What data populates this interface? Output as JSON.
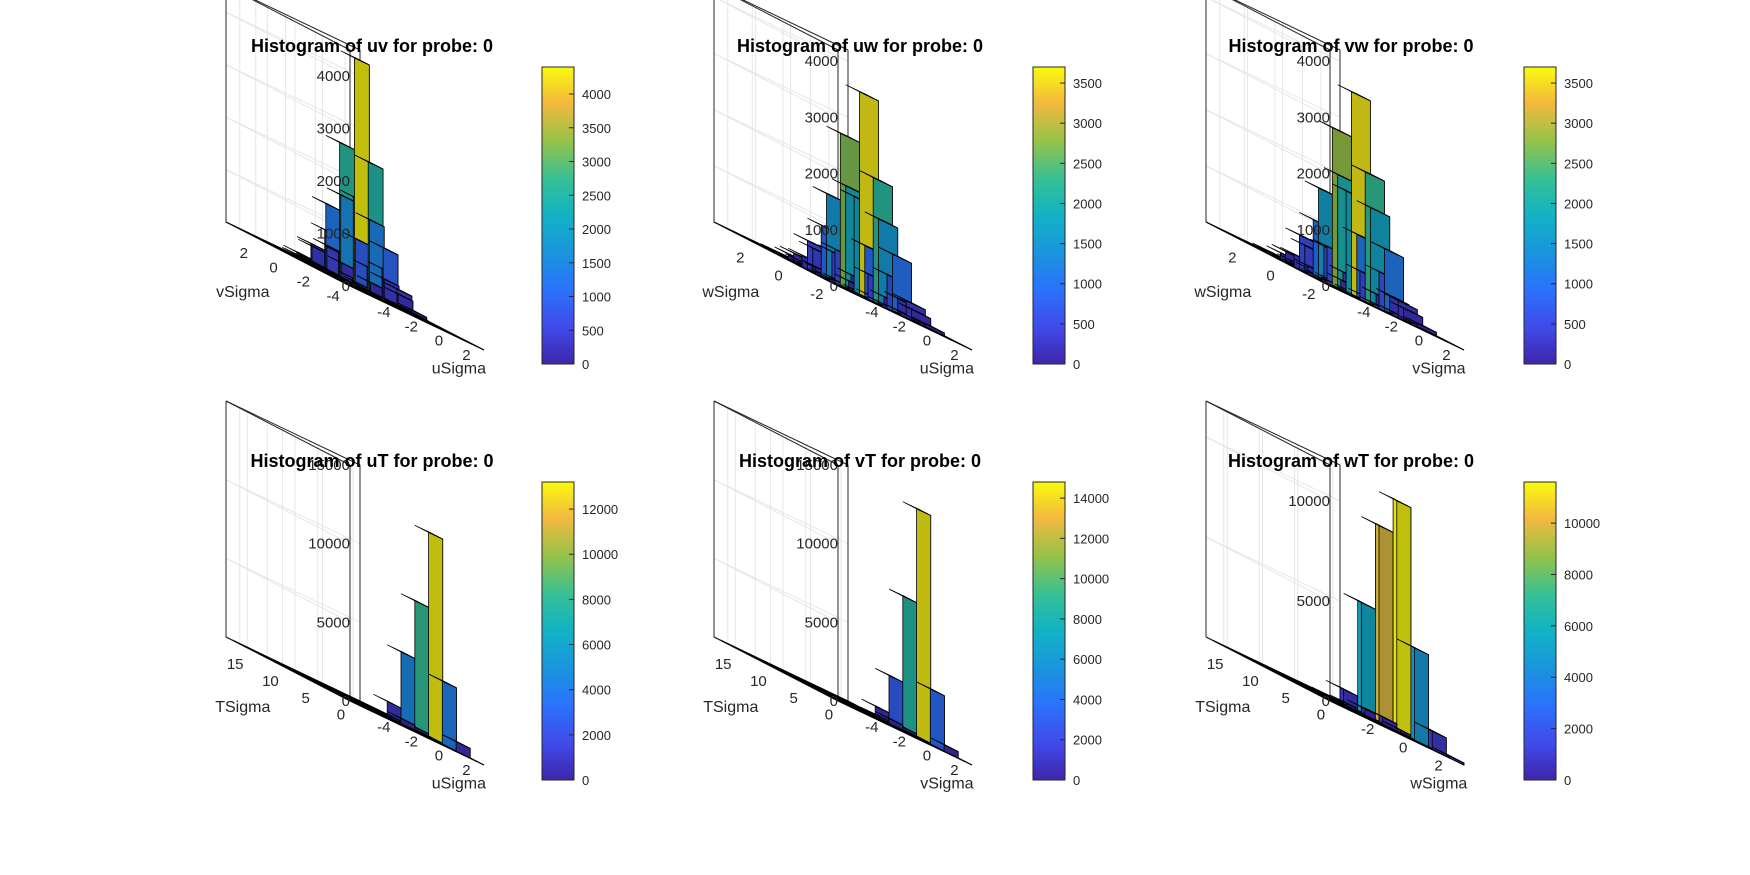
{
  "chart_data": [
    {
      "type": "bar3d",
      "title": "Histogram of uv for probe: 0",
      "xlabel": "uSigma",
      "ylabel": "vSigma",
      "x_ticks": [
        "-4",
        "-2",
        "0",
        "2"
      ],
      "y_ticks": [
        "2",
        "0",
        "-2",
        "-4"
      ],
      "z_ticks": [
        "0",
        "1000",
        "2000",
        "3000",
        "4000"
      ],
      "xlim": [
        -5,
        4
      ],
      "ylim": [
        -5,
        4
      ],
      "zlim": [
        0,
        4500
      ],
      "colorbar": {
        "ticks": [
          "0",
          "500",
          "1000",
          "1500",
          "2000",
          "2500",
          "3000",
          "3500",
          "4000"
        ],
        "range": [
          0,
          4400
        ]
      },
      "x_bins": [
        -4.5,
        -3.5,
        -2.5,
        -1.5,
        -0.5,
        0.5,
        1.5,
        2.5,
        3.5
      ],
      "y_bins": [
        -4.5,
        -3.5,
        -2.5,
        -1.5,
        -0.5,
        0.5,
        1.5,
        2.5,
        3.5
      ],
      "grid": true,
      "values": [
        [
          0,
          0,
          0,
          0,
          0,
          0,
          0,
          0,
          0
        ],
        [
          0,
          0,
          0,
          20,
          30,
          20,
          0,
          0,
          0
        ],
        [
          0,
          0,
          60,
          200,
          400,
          250,
          80,
          0,
          0
        ],
        [
          0,
          30,
          300,
          900,
          1400,
          1000,
          350,
          40,
          0
        ],
        [
          0,
          50,
          500,
          1600,
          4350,
          2500,
          600,
          60,
          0
        ],
        [
          0,
          40,
          350,
          1300,
          2600,
          1700,
          500,
          40,
          0
        ],
        [
          0,
          0,
          100,
          400,
          800,
          500,
          150,
          0,
          0
        ],
        [
          0,
          0,
          0,
          60,
          100,
          70,
          0,
          0,
          0
        ],
        [
          0,
          0,
          0,
          0,
          0,
          0,
          0,
          0,
          0
        ]
      ]
    },
    {
      "type": "bar3d",
      "title": "Histogram of uw for probe: 0",
      "xlabel": "uSigma",
      "ylabel": "wSigma",
      "x_ticks": [
        "-4",
        "-2",
        "0",
        "2"
      ],
      "y_ticks": [
        "2",
        "0",
        "-2"
      ],
      "z_ticks": [
        "0",
        "1000",
        "2000",
        "3000",
        "4000"
      ],
      "xlim": [
        -5,
        4
      ],
      "ylim": [
        -3,
        4
      ],
      "zlim": [
        0,
        4200
      ],
      "colorbar": {
        "ticks": [
          "0",
          "500",
          "1000",
          "1500",
          "2000",
          "2500",
          "3000",
          "3500"
        ],
        "range": [
          0,
          3700
        ]
      },
      "x_bins": [
        -4.5,
        -3.5,
        -2.5,
        -1.5,
        -0.5,
        0.5,
        1.5,
        2.5,
        3.5
      ],
      "y_bins": [
        -2.5,
        -1.5,
        -0.5,
        0.5,
        1.5,
        2.5,
        3.5
      ],
      "grid": true,
      "values": [
        [
          0,
          0,
          40,
          150,
          250,
          180,
          50,
          0,
          0
        ],
        [
          0,
          30,
          250,
          900,
          1500,
          1000,
          300,
          40,
          0
        ],
        [
          0,
          60,
          500,
          1800,
          3600,
          2200,
          600,
          60,
          0
        ],
        [
          0,
          50,
          400,
          1500,
          2700,
          1700,
          450,
          50,
          0
        ],
        [
          0,
          20,
          150,
          500,
          900,
          600,
          160,
          20,
          0
        ],
        [
          0,
          0,
          30,
          100,
          200,
          120,
          40,
          0,
          0
        ],
        [
          0,
          0,
          0,
          20,
          40,
          20,
          0,
          0,
          0
        ]
      ]
    },
    {
      "type": "bar3d",
      "title": "Histogram of vw for probe: 0",
      "xlabel": "vSigma",
      "ylabel": "wSigma",
      "x_ticks": [
        "-4",
        "-2",
        "0",
        "2"
      ],
      "y_ticks": [
        "2",
        "0",
        "-2"
      ],
      "z_ticks": [
        "0",
        "1000",
        "2000",
        "3000",
        "4000"
      ],
      "xlim": [
        -5,
        4
      ],
      "ylim": [
        -3,
        4
      ],
      "zlim": [
        0,
        4200
      ],
      "colorbar": {
        "ticks": [
          "0",
          "500",
          "1000",
          "1500",
          "2000",
          "2500",
          "3000",
          "3500"
        ],
        "range": [
          0,
          3700
        ]
      },
      "x_bins": [
        -4.5,
        -3.5,
        -2.5,
        -1.5,
        -0.5,
        0.5,
        1.5,
        2.5,
        3.5
      ],
      "y_bins": [
        -2.5,
        -1.5,
        -0.5,
        0.5,
        1.5,
        2.5,
        3.5
      ],
      "grid": true,
      "values": [
        [
          0,
          0,
          50,
          200,
          300,
          200,
          60,
          0,
          0
        ],
        [
          0,
          40,
          300,
          1100,
          1700,
          1100,
          300,
          40,
          0
        ],
        [
          0,
          60,
          600,
          2000,
          3600,
          2300,
          650,
          60,
          0
        ],
        [
          0,
          50,
          450,
          1600,
          2800,
          1800,
          500,
          50,
          0
        ],
        [
          0,
          20,
          180,
          600,
          1000,
          650,
          180,
          20,
          0
        ],
        [
          0,
          0,
          40,
          120,
          220,
          140,
          40,
          0,
          0
        ],
        [
          0,
          0,
          0,
          20,
          40,
          20,
          0,
          0,
          0
        ]
      ]
    },
    {
      "type": "bar3d",
      "title": "Histogram of uT for probe: 0",
      "xlabel": "uSigma",
      "ylabel": "TSigma",
      "x_ticks": [
        "-4",
        "-2",
        "0",
        "2"
      ],
      "y_ticks": [
        "15",
        "10",
        "5",
        "0"
      ],
      "z_ticks": [
        "0",
        "5000",
        "10000",
        "15000"
      ],
      "xlim": [
        -5,
        4
      ],
      "ylim": [
        -1,
        18
      ],
      "zlim": [
        0,
        15000
      ],
      "colorbar": {
        "ticks": [
          "0",
          "2000",
          "4000",
          "6000",
          "8000",
          "10000",
          "12000"
        ],
        "range": [
          0,
          13200
        ]
      },
      "x_bins": [
        -4.5,
        -3.5,
        -2.5,
        -1.5,
        -0.5,
        0.5,
        1.5,
        2.5,
        3.5
      ],
      "y_bins": [
        0,
        2,
        4,
        6,
        8,
        10,
        12,
        14,
        16
      ],
      "grid": true,
      "values": [
        [
          0,
          40,
          900,
          4500,
          8200,
          13000,
          4000,
          600,
          0
        ],
        [
          0,
          0,
          20,
          100,
          300,
          200,
          60,
          0,
          0
        ],
        [
          0,
          0,
          0,
          0,
          0,
          0,
          0,
          0,
          0
        ],
        [
          0,
          0,
          0,
          0,
          0,
          0,
          0,
          0,
          0
        ],
        [
          0,
          0,
          0,
          0,
          0,
          0,
          0,
          0,
          0
        ],
        [
          0,
          0,
          0,
          0,
          0,
          0,
          0,
          0,
          0
        ],
        [
          0,
          0,
          0,
          0,
          0,
          0,
          0,
          0,
          0
        ],
        [
          0,
          0,
          0,
          0,
          0,
          0,
          0,
          0,
          0
        ],
        [
          0,
          0,
          0,
          0,
          0,
          0,
          0,
          0,
          0
        ]
      ]
    },
    {
      "type": "bar3d",
      "title": "Histogram of vT for probe: 0",
      "xlabel": "vSigma",
      "ylabel": "TSigma",
      "x_ticks": [
        "-4",
        "-2",
        "0",
        "2"
      ],
      "y_ticks": [
        "15",
        "10",
        "5",
        "0"
      ],
      "z_ticks": [
        "0",
        "5000",
        "10000",
        "15000"
      ],
      "xlim": [
        -5,
        4
      ],
      "ylim": [
        -1,
        18
      ],
      "zlim": [
        0,
        15000
      ],
      "colorbar": {
        "ticks": [
          "0",
          "2000",
          "4000",
          "6000",
          "8000",
          "10000",
          "12000",
          "14000"
        ],
        "range": [
          0,
          14800
        ]
      },
      "x_bins": [
        -4.5,
        -3.5,
        -2.5,
        -1.5,
        -0.5,
        0.5,
        1.5,
        2.5,
        3.5
      ],
      "y_bins": [
        0,
        2,
        4,
        6,
        8,
        10,
        12,
        14,
        16
      ],
      "grid": true,
      "values": [
        [
          0,
          0,
          600,
          3000,
          8500,
          14500,
          3500,
          400,
          0
        ],
        [
          0,
          0,
          20,
          100,
          300,
          200,
          60,
          0,
          0
        ],
        [
          0,
          0,
          0,
          0,
          0,
          0,
          0,
          0,
          0
        ],
        [
          0,
          0,
          0,
          0,
          0,
          0,
          0,
          0,
          0
        ],
        [
          0,
          0,
          0,
          0,
          0,
          0,
          0,
          0,
          0
        ],
        [
          0,
          0,
          0,
          0,
          0,
          0,
          0,
          0,
          0
        ],
        [
          0,
          0,
          0,
          0,
          0,
          0,
          0,
          0,
          0
        ],
        [
          0,
          0,
          0,
          0,
          0,
          0,
          0,
          0,
          0
        ],
        [
          0,
          0,
          0,
          0,
          0,
          0,
          0,
          0,
          0
        ]
      ]
    },
    {
      "type": "bar3d",
      "title": "Histogram of wT for probe: 0",
      "xlabel": "wSigma",
      "ylabel": "TSigma",
      "x_ticks": [
        "-2",
        "0",
        "2"
      ],
      "y_ticks": [
        "15",
        "10",
        "5",
        "0"
      ],
      "z_ticks": [
        "0",
        "5000",
        "10000"
      ],
      "xlim": [
        -3,
        4
      ],
      "ylim": [
        -1,
        18
      ],
      "zlim": [
        0,
        11800
      ],
      "colorbar": {
        "ticks": [
          "0",
          "2000",
          "4000",
          "6000",
          "8000",
          "10000"
        ],
        "range": [
          0,
          11600
        ]
      },
      "x_bins": [
        -2.5,
        -1.5,
        -0.5,
        0.5,
        1.5,
        2.5,
        3.5
      ],
      "y_bins": [
        0,
        2,
        4,
        6,
        8,
        10,
        12,
        14,
        16
      ],
      "grid": true,
      "values": [
        [
          700,
          5500,
          9800,
          11500,
          4600,
          900,
          100
        ],
        [
          20,
          100,
          300,
          350,
          150,
          40,
          0
        ],
        [
          0,
          0,
          0,
          0,
          0,
          0,
          0
        ],
        [
          0,
          0,
          0,
          0,
          0,
          0,
          0
        ],
        [
          0,
          0,
          0,
          0,
          0,
          0,
          0
        ],
        [
          0,
          0,
          0,
          0,
          0,
          0,
          0
        ],
        [
          0,
          0,
          0,
          0,
          0,
          0,
          0
        ],
        [
          0,
          0,
          0,
          0,
          0,
          0,
          0
        ],
        [
          0,
          0,
          0,
          0,
          0,
          0,
          0
        ]
      ]
    }
  ]
}
